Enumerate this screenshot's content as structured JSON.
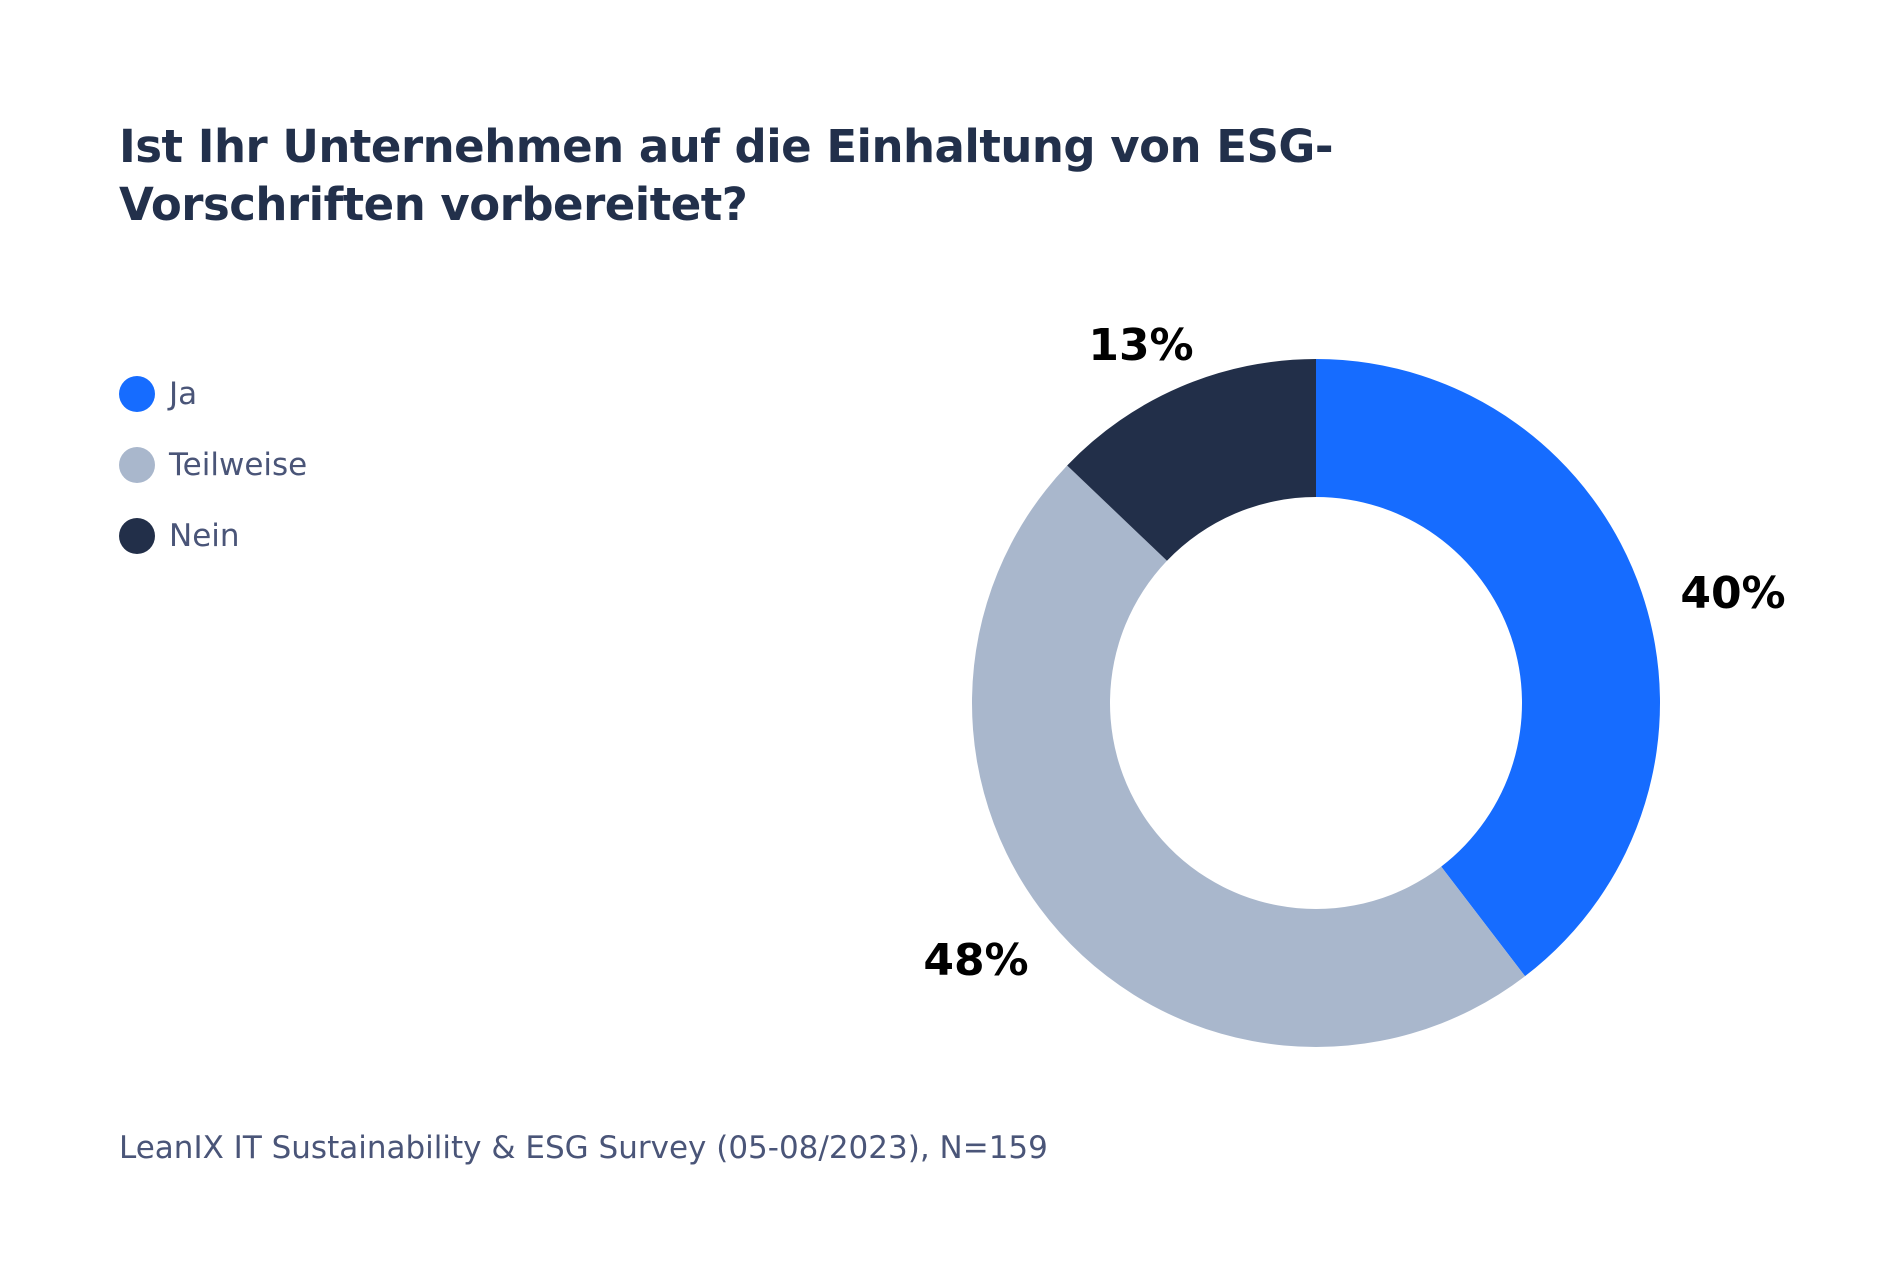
{
  "chart_data": {
    "type": "pie",
    "variant": "donut",
    "title": "Ist Ihr Unternehmen auf die Einhaltung von ESG-Vorschriften vorbereitet?",
    "legend_position": "left",
    "categories": [
      "Ja",
      "Teilweise",
      "Nein"
    ],
    "values": [
      40,
      48,
      13
    ],
    "labels": [
      "40%",
      "48%",
      "13%"
    ],
    "colors": [
      "#166cff",
      "#a9b7cc",
      "#222f49"
    ],
    "source": "LeanIX IT Sustainability & ESG Survey (05-08/2023), N=159"
  }
}
